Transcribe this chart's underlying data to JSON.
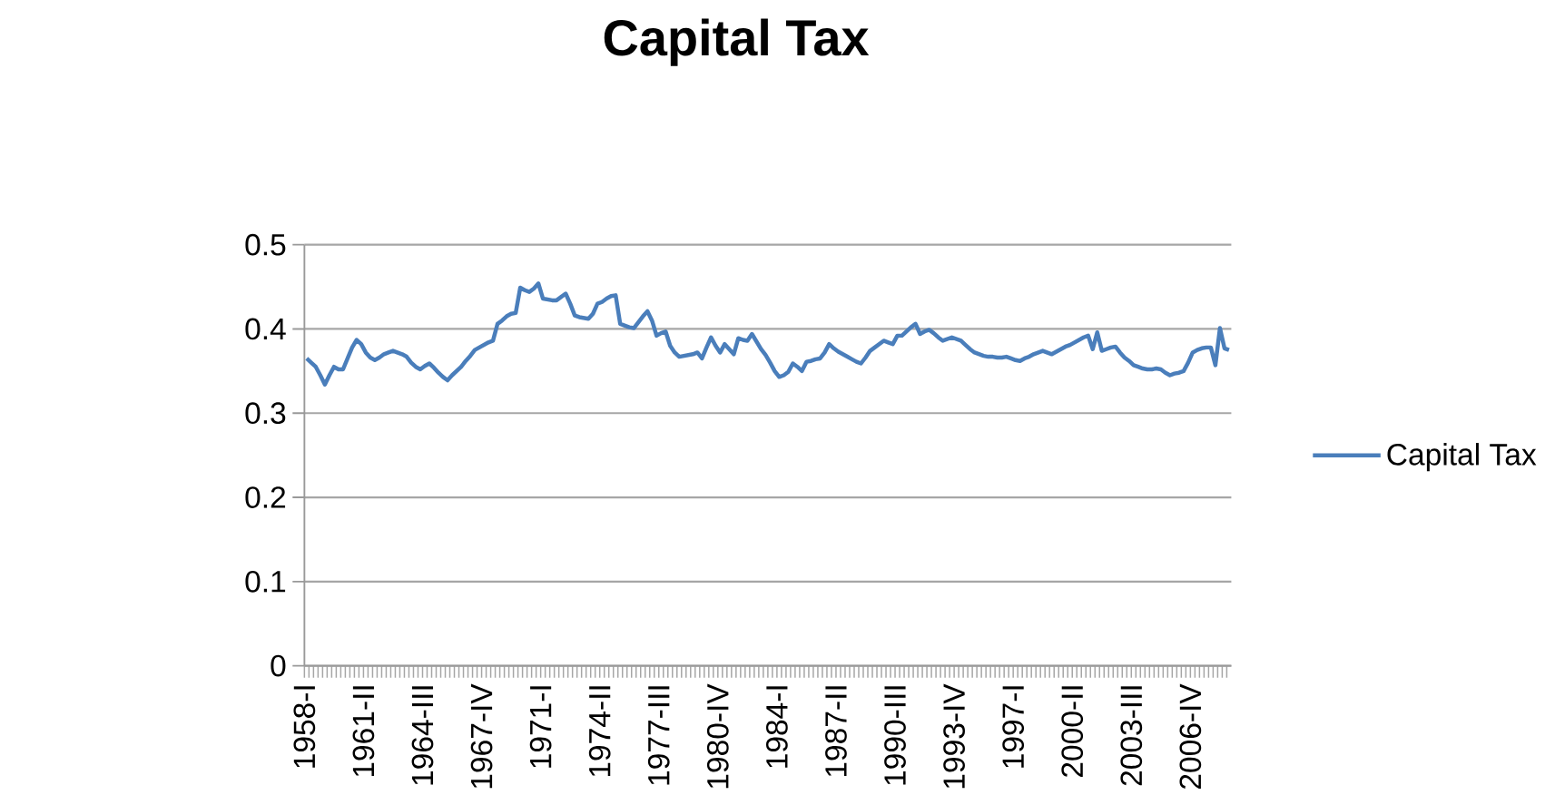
{
  "chart_data": {
    "type": "line",
    "title": "Capital Tax",
    "categories": [
      "1958-I",
      null,
      null,
      null,
      null,
      null,
      null,
      null,
      null,
      null,
      null,
      null,
      null,
      "1961-II",
      null,
      null,
      null,
      null,
      null,
      null,
      null,
      null,
      null,
      null,
      null,
      null,
      "1964-III",
      null,
      null,
      null,
      null,
      null,
      null,
      null,
      null,
      null,
      null,
      null,
      null,
      "1967-IV",
      null,
      null,
      null,
      null,
      null,
      null,
      null,
      null,
      null,
      null,
      null,
      null,
      "1971-I",
      null,
      null,
      null,
      null,
      null,
      null,
      null,
      null,
      null,
      null,
      null,
      null,
      "1974-II",
      null,
      null,
      null,
      null,
      null,
      null,
      null,
      null,
      null,
      null,
      null,
      null,
      "1977-III",
      null,
      null,
      null,
      null,
      null,
      null,
      null,
      null,
      null,
      null,
      null,
      null,
      "1980-IV",
      null,
      null,
      null,
      null,
      null,
      null,
      null,
      null,
      null,
      null,
      null,
      null,
      "1984-I",
      null,
      null,
      null,
      null,
      null,
      null,
      null,
      null,
      null,
      null,
      null,
      null,
      "1987-II",
      null,
      null,
      null,
      null,
      null,
      null,
      null,
      null,
      null,
      null,
      null,
      null,
      "1990-III",
      null,
      null,
      null,
      null,
      null,
      null,
      null,
      null,
      null,
      null,
      null,
      null,
      "1993-IV",
      null,
      null,
      null,
      null,
      null,
      null,
      null,
      null,
      null,
      null,
      null,
      null,
      "1997-I",
      null,
      null,
      null,
      null,
      null,
      null,
      null,
      null,
      null,
      null,
      null,
      null,
      "2000-II",
      null,
      null,
      null,
      null,
      null,
      null,
      null,
      null,
      null,
      null,
      null,
      null,
      "2003-III",
      null,
      null,
      null,
      null,
      null,
      null,
      null,
      null,
      null,
      null,
      null,
      null,
      "2006-IV",
      null,
      null,
      null,
      null,
      null,
      null,
      null,
      null
    ],
    "series": [
      {
        "name": "Capital Tax",
        "color": "#4a7ebb",
        "values": [
          0.365,
          0.36,
          0.355,
          0.345,
          0.334,
          0.345,
          0.355,
          0.352,
          0.352,
          0.365,
          0.378,
          0.387,
          0.382,
          0.372,
          0.366,
          0.363,
          0.366,
          0.37,
          0.372,
          0.374,
          0.372,
          0.37,
          0.367,
          0.36,
          0.355,
          0.352,
          0.356,
          0.359,
          0.354,
          0.348,
          0.343,
          0.339,
          0.345,
          0.35,
          0.355,
          0.362,
          0.368,
          0.375,
          0.378,
          0.381,
          0.384,
          0.386,
          0.406,
          0.41,
          0.415,
          0.418,
          0.419,
          0.449,
          0.446,
          0.444,
          0.448,
          0.454,
          0.436,
          0.435,
          0.434,
          0.434,
          0.438,
          0.442,
          0.43,
          0.416,
          0.414,
          0.413,
          0.412,
          0.418,
          0.43,
          0.432,
          0.436,
          0.439,
          0.44,
          0.406,
          0.404,
          0.402,
          0.401,
          0.408,
          0.415,
          0.421,
          0.41,
          0.392,
          0.395,
          0.397,
          0.38,
          0.372,
          0.367,
          0.368,
          0.369,
          0.37,
          0.372,
          0.365,
          0.378,
          0.39,
          0.38,
          0.372,
          0.382,
          0.376,
          0.37,
          0.389,
          0.387,
          0.386,
          0.394,
          0.385,
          0.376,
          0.369,
          0.36,
          0.35,
          0.343,
          0.345,
          0.349,
          0.359,
          0.355,
          0.35,
          0.361,
          0.362,
          0.364,
          0.365,
          0.372,
          0.382,
          0.377,
          0.373,
          0.37,
          0.367,
          0.364,
          0.361,
          0.359,
          0.366,
          0.374,
          0.378,
          0.382,
          0.386,
          0.384,
          0.382,
          0.392,
          0.392,
          0.397,
          0.402,
          0.406,
          0.394,
          0.397,
          0.399,
          0.395,
          0.39,
          0.386,
          0.388,
          0.39,
          0.388,
          0.386,
          0.381,
          0.376,
          0.372,
          0.37,
          0.368,
          0.367,
          0.367,
          0.366,
          0.366,
          0.367,
          0.365,
          0.363,
          0.362,
          0.365,
          0.367,
          0.37,
          0.372,
          0.374,
          0.372,
          0.37,
          0.373,
          0.376,
          0.379,
          0.381,
          0.384,
          0.387,
          0.39,
          0.392,
          0.376,
          0.396,
          0.374,
          0.376,
          0.378,
          0.379,
          0.372,
          0.366,
          0.362,
          0.357,
          0.355,
          0.353,
          0.352,
          0.352,
          0.353,
          0.352,
          0.348,
          0.345,
          0.347,
          0.348,
          0.35,
          0.36,
          0.372,
          0.375,
          0.377,
          0.378,
          0.378,
          0.357,
          0.401,
          0.377,
          0.375
        ]
      }
    ],
    "ylim": [
      0,
      0.5
    ],
    "yticks": [
      0,
      0.1,
      0.2,
      0.3,
      0.4,
      0.5
    ],
    "grid": "y",
    "legend": "right"
  }
}
